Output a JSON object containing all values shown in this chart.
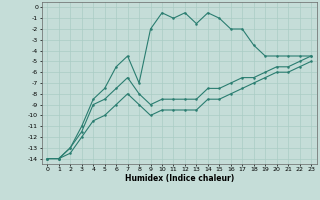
{
  "xlabel": "Humidex (Indice chaleur)",
  "xlim": [
    -0.5,
    23.5
  ],
  "ylim": [
    -14.5,
    0.5
  ],
  "xticks": [
    0,
    1,
    2,
    3,
    4,
    5,
    6,
    7,
    8,
    9,
    10,
    11,
    12,
    13,
    14,
    15,
    16,
    17,
    18,
    19,
    20,
    21,
    22,
    23
  ],
  "yticks": [
    0,
    -1,
    -2,
    -3,
    -4,
    -5,
    -6,
    -7,
    -8,
    -9,
    -10,
    -11,
    -12,
    -13,
    -14
  ],
  "bg_color": "#c5ddd8",
  "line_color": "#2a7d70",
  "grid_color": "#aaccc5",
  "line1_x": [
    0,
    1,
    2,
    3,
    4,
    5,
    6,
    7,
    8,
    9,
    10,
    11,
    12,
    13,
    14,
    15,
    16,
    17,
    18,
    19,
    20,
    21,
    22,
    23
  ],
  "line1_y": [
    -14,
    -14,
    -13,
    -11,
    -8.5,
    -7.5,
    -5.5,
    -4.5,
    -7,
    -2,
    -0.5,
    -1,
    -0.5,
    -1.5,
    -0.5,
    -1,
    -2,
    -2,
    -3.5,
    -4.5,
    -4.5,
    -4.5,
    -4.5,
    -4.5
  ],
  "line2_x": [
    0,
    1,
    2,
    3,
    4,
    5,
    6,
    7,
    8,
    9,
    10,
    11,
    12,
    13,
    14,
    15,
    16,
    17,
    18,
    19,
    20,
    21,
    22,
    23
  ],
  "line2_y": [
    -14,
    -14,
    -13,
    -11.5,
    -9,
    -8.5,
    -7.5,
    -6.5,
    -8,
    -9,
    -8.5,
    -8.5,
    -8.5,
    -8.5,
    -7.5,
    -7.5,
    -7,
    -6.5,
    -6.5,
    -6,
    -5.5,
    -5.5,
    -5,
    -4.5
  ],
  "line3_x": [
    0,
    1,
    2,
    3,
    4,
    5,
    6,
    7,
    8,
    9,
    10,
    11,
    12,
    13,
    14,
    15,
    16,
    17,
    18,
    19,
    20,
    21,
    22,
    23
  ],
  "line3_y": [
    -14,
    -14,
    -13.5,
    -12,
    -10.5,
    -10,
    -9,
    -8,
    -9,
    -10,
    -9.5,
    -9.5,
    -9.5,
    -9.5,
    -8.5,
    -8.5,
    -8,
    -7.5,
    -7,
    -6.5,
    -6,
    -6,
    -5.5,
    -5
  ],
  "xlabel_fontsize": 5.5,
  "xlabel_bold": true,
  "tick_fontsize": 4.5,
  "marker_size": 1.8,
  "line_width": 0.8
}
